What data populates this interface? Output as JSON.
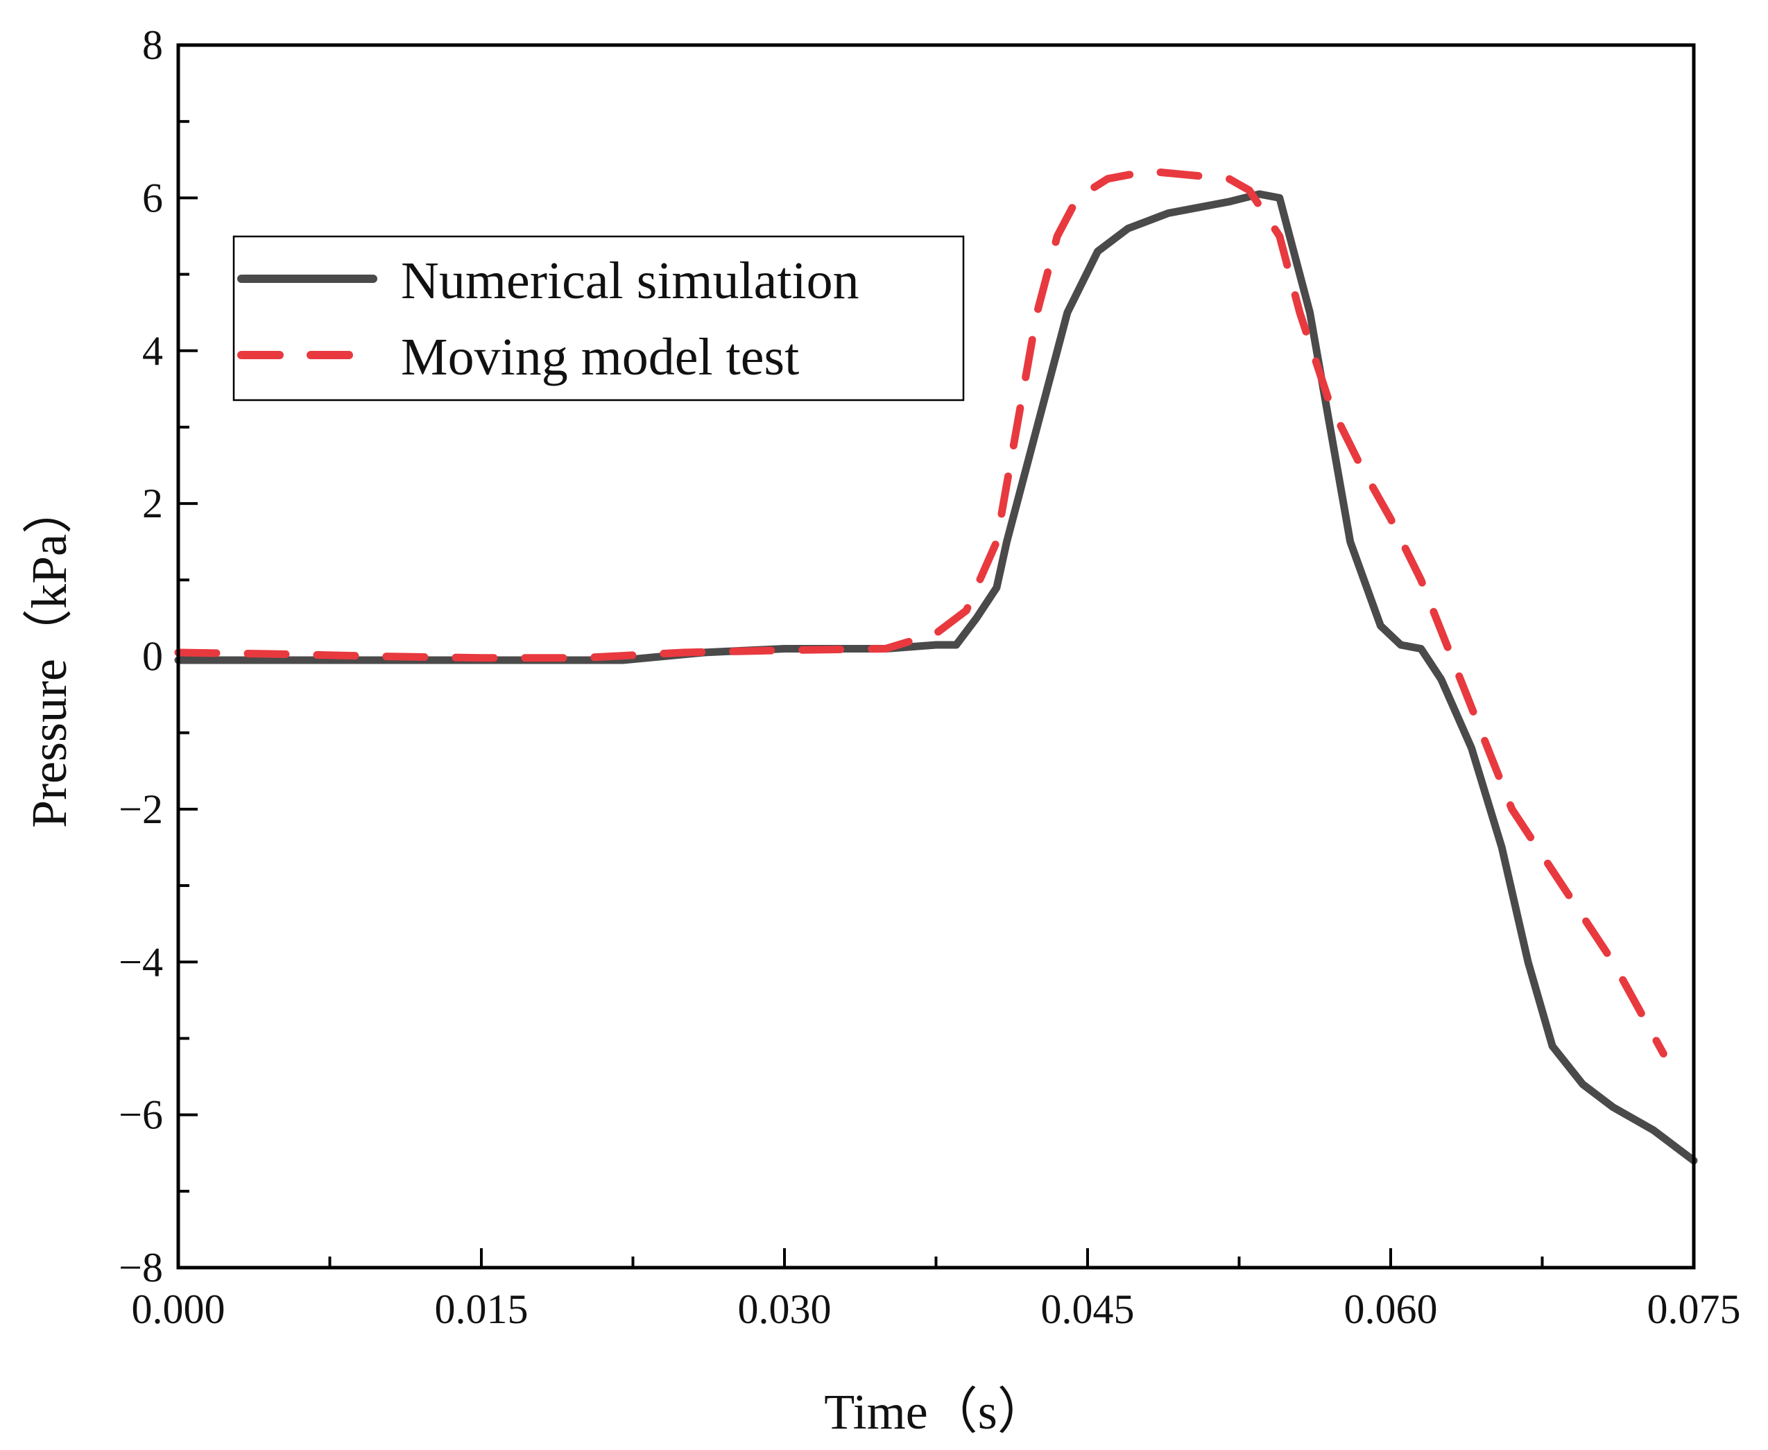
{
  "chart_data": {
    "type": "line",
    "title": "",
    "xlabel": "Time（s）",
    "ylabel": "Pressure（kPa）",
    "xlim": [
      0,
      0.075
    ],
    "ylim": [
      -8,
      8
    ],
    "xticks": [
      "0.000",
      "0.015",
      "0.030",
      "0.045",
      "0.060",
      "0.075"
    ],
    "xtick_values": [
      0,
      0.015,
      0.03,
      0.045,
      0.06,
      0.075
    ],
    "yticks": [
      "−8",
      "−6",
      "−4",
      "−2",
      "0",
      "2",
      "4",
      "6",
      "8"
    ],
    "ytick_values": [
      -8,
      -6,
      -4,
      -2,
      0,
      2,
      4,
      6,
      8
    ],
    "grid": false,
    "legend_position": "top-left",
    "series": [
      {
        "name": "Numerical simulation",
        "color": "#4a4a4a",
        "style": "solid",
        "x": [
          0,
          0.01,
          0.022,
          0.026,
          0.03,
          0.035,
          0.0375,
          0.0385,
          0.0395,
          0.0405,
          0.041,
          0.0425,
          0.044,
          0.0455,
          0.047,
          0.049,
          0.052,
          0.0535,
          0.0545,
          0.055,
          0.056,
          0.057,
          0.058,
          0.0595,
          0.0605,
          0.0615,
          0.0625,
          0.064,
          0.0655,
          0.0668,
          0.068,
          0.0695,
          0.071,
          0.073,
          0.075
        ],
        "y": [
          -0.05,
          -0.05,
          -0.05,
          0.05,
          0.1,
          0.1,
          0.15,
          0.15,
          0.5,
          0.9,
          1.5,
          3.0,
          4.5,
          5.3,
          5.6,
          5.8,
          5.95,
          6.05,
          6.0,
          5.5,
          4.5,
          3.0,
          1.5,
          0.4,
          0.15,
          0.1,
          -0.3,
          -1.2,
          -2.5,
          -4.0,
          -5.1,
          -5.6,
          -5.9,
          -6.2,
          -6.6
        ]
      },
      {
        "name": "Moving model test",
        "color": "#e8393f",
        "style": "dashed",
        "x": [
          0,
          0.005,
          0.01,
          0.015,
          0.02,
          0.025,
          0.03,
          0.035,
          0.0375,
          0.039,
          0.0405,
          0.0415,
          0.0425,
          0.0435,
          0.0445,
          0.046,
          0.048,
          0.05,
          0.052,
          0.053,
          0.0545,
          0.0555,
          0.057,
          0.0585,
          0.06,
          0.0615,
          0.063,
          0.0645,
          0.066,
          0.0685,
          0.071,
          0.0735
        ],
        "y": [
          0.05,
          0.03,
          0.0,
          -0.02,
          -0.02,
          0.05,
          0.08,
          0.1,
          0.3,
          0.6,
          1.5,
          3.0,
          4.5,
          5.5,
          6.0,
          6.25,
          6.35,
          6.3,
          6.25,
          6.1,
          5.5,
          4.5,
          3.3,
          2.5,
          1.8,
          1.0,
          0.0,
          -1.0,
          -2.0,
          -3.0,
          -4.0,
          -5.2
        ]
      }
    ]
  }
}
